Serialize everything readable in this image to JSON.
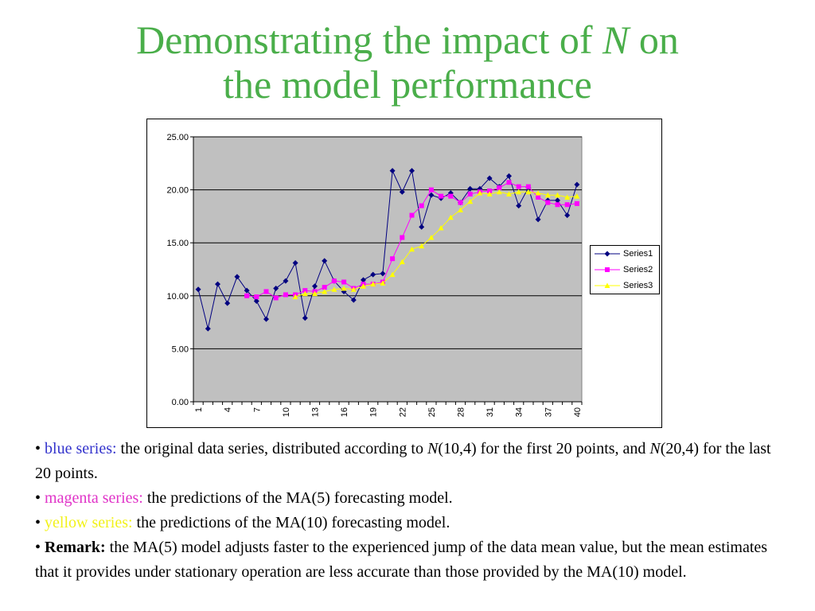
{
  "slide": {
    "title_line1_pre": "Demonstrating the impact of ",
    "title_line1_var": "N",
    "title_line1_post": " on",
    "title_line2": "the model performance"
  },
  "colors": {
    "title": "#4aae4a",
    "series1": "#000080",
    "series2": "#ff00ff",
    "series3": "#ffff00",
    "plot_background": "#c0c0c0"
  },
  "chart_data": {
    "type": "line",
    "x": [
      1,
      2,
      3,
      4,
      5,
      6,
      7,
      8,
      9,
      10,
      11,
      12,
      13,
      14,
      15,
      16,
      17,
      18,
      19,
      20,
      21,
      22,
      23,
      24,
      25,
      26,
      27,
      28,
      29,
      30,
      31,
      32,
      33,
      34,
      35,
      36,
      37,
      38,
      39,
      40
    ],
    "x_tick_labels": [
      "1",
      "4",
      "7",
      "10",
      "13",
      "16",
      "19",
      "22",
      "25",
      "28",
      "31",
      "34",
      "37",
      "40"
    ],
    "y_tick_labels": [
      "0.00",
      "5.00",
      "10.00",
      "15.00",
      "20.00",
      "25.00"
    ],
    "ylim": [
      0,
      25
    ],
    "grid": "horizontal major gridlines",
    "legend_position": "right",
    "series": [
      {
        "name": "Series1",
        "marker": "diamond",
        "values": [
          10.6,
          6.9,
          11.1,
          9.3,
          11.8,
          10.5,
          9.5,
          7.8,
          10.7,
          11.4,
          13.1,
          7.9,
          10.9,
          13.3,
          11.4,
          10.4,
          9.6,
          11.5,
          12.0,
          12.1,
          21.8,
          19.8,
          21.8,
          16.5,
          19.5,
          19.2,
          19.7,
          18.8,
          20.1,
          20.1,
          21.1,
          20.3,
          21.3,
          18.5,
          20.2,
          17.2,
          19.0,
          19.0,
          17.6,
          20.5
        ]
      },
      {
        "name": "Series2",
        "marker": "square",
        "values": [
          null,
          null,
          null,
          null,
          null,
          10.0,
          9.9,
          10.4,
          9.8,
          10.1,
          10.1,
          10.5,
          10.4,
          10.8,
          11.4,
          11.3,
          10.7,
          11.1,
          11.1,
          11.3,
          13.5,
          15.5,
          17.6,
          18.5,
          20.0,
          19.4,
          19.4,
          18.8,
          19.6,
          19.8,
          19.9,
          20.2,
          20.7,
          20.3,
          20.3,
          19.3,
          18.8,
          18.6,
          18.6,
          18.7
        ]
      },
      {
        "name": "Series3",
        "marker": "triangle",
        "values": [
          null,
          null,
          null,
          null,
          null,
          null,
          null,
          null,
          null,
          null,
          9.9,
          10.2,
          10.2,
          10.4,
          10.6,
          10.7,
          10.6,
          10.9,
          11.1,
          11.2,
          12.0,
          13.2,
          14.4,
          14.7,
          15.5,
          16.4,
          17.4,
          18.1,
          18.9,
          19.7,
          19.6,
          19.8,
          19.6,
          19.8,
          19.8,
          19.7,
          19.5,
          19.5,
          19.3,
          19.4
        ]
      }
    ]
  },
  "bullets": {
    "b1_label": "blue series:",
    "b1_text_a": " the original data series, distributed according to ",
    "b1_var1": "N",
    "b1_text_b": "(10,4) for the first 20 points, and ",
    "b1_var2": "N",
    "b1_text_c": "(20,4) for the last 20 points.",
    "b2_label": "magenta series:",
    "b2_text": " the predictions of the MA(5) forecasting model.",
    "b3_label": "yellow series:",
    "b3_text": " the predictions of the MA(10) forecasting model.",
    "b4_label": "Remark:",
    "b4_text": " the MA(5) model adjusts faster to the experienced jump of the data mean value, but the mean estimates that it provides under stationary operation are less accurate than those provided by the MA(10) model."
  }
}
